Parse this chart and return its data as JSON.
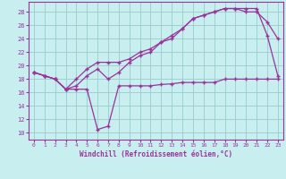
{
  "bg_color": "#c8eef0",
  "grid_color": "#99cccc",
  "line_color": "#993399",
  "marker": "+",
  "xlabel": "Windchill (Refroidissement éolien,°C)",
  "xlim": [
    -0.5,
    23.5
  ],
  "ylim": [
    9,
    29.5
  ],
  "yticks": [
    10,
    12,
    14,
    16,
    18,
    20,
    22,
    24,
    26,
    28
  ],
  "xticks": [
    0,
    1,
    2,
    3,
    4,
    5,
    6,
    7,
    8,
    9,
    10,
    11,
    12,
    13,
    14,
    15,
    16,
    17,
    18,
    19,
    20,
    21,
    22,
    23
  ],
  "line1_x": [
    0,
    1,
    2,
    3,
    4,
    5,
    6,
    7,
    8,
    9,
    10,
    11,
    12,
    13,
    14,
    15,
    16,
    17,
    18,
    19,
    20,
    21,
    22,
    23
  ],
  "line1_y": [
    19.0,
    18.5,
    18.0,
    16.5,
    16.5,
    16.5,
    10.5,
    11.0,
    17.0,
    17.0,
    17.0,
    17.0,
    17.2,
    17.3,
    17.5,
    17.5,
    17.5,
    17.5,
    18.0,
    18.0,
    18.0,
    18.0,
    18.0,
    18.0
  ],
  "line2_x": [
    0,
    1,
    2,
    3,
    4,
    5,
    6,
    7,
    8,
    9,
    10,
    11,
    12,
    13,
    14,
    15,
    16,
    17,
    18,
    19,
    20,
    21,
    22,
    23
  ],
  "line2_y": [
    19.0,
    18.5,
    18.0,
    16.5,
    17.0,
    18.5,
    19.5,
    18.0,
    19.0,
    20.5,
    21.5,
    22.0,
    23.5,
    24.0,
    25.5,
    27.0,
    27.5,
    28.0,
    28.5,
    28.5,
    28.0,
    28.0,
    26.5,
    24.0
  ],
  "line3_x": [
    0,
    1,
    2,
    3,
    4,
    5,
    6,
    7,
    8,
    9,
    10,
    11,
    12,
    13,
    14,
    15,
    16,
    17,
    18,
    19,
    20,
    21,
    22,
    23
  ],
  "line3_y": [
    19.0,
    18.5,
    18.0,
    16.5,
    18.0,
    19.5,
    20.5,
    20.5,
    20.5,
    21.0,
    22.0,
    22.5,
    23.5,
    24.5,
    25.5,
    27.0,
    27.5,
    28.0,
    28.5,
    28.5,
    28.5,
    28.5,
    24.5,
    18.5
  ]
}
